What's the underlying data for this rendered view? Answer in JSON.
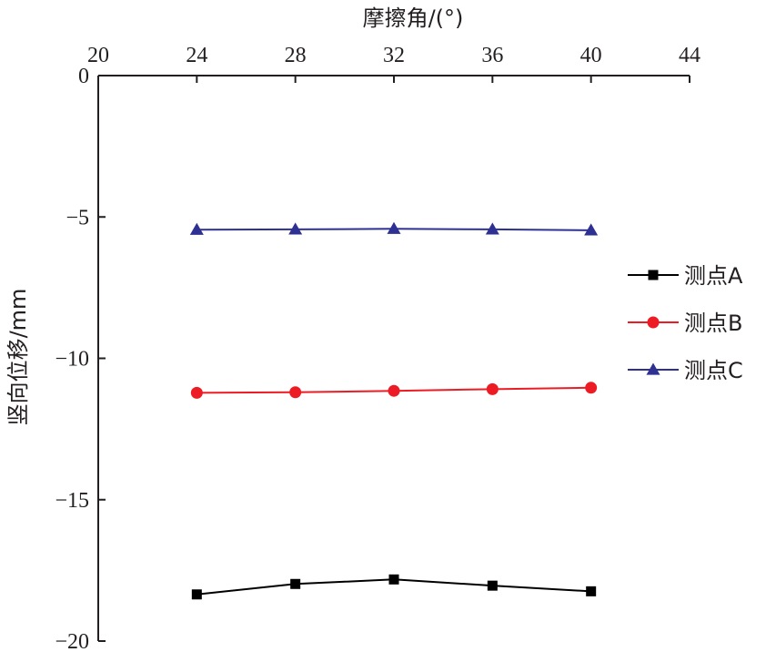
{
  "chart_data": {
    "type": "line",
    "xlabel": "摩擦角/(°)",
    "ylabel": "竖向位移/mm",
    "x_axis_position": "top",
    "xlim": [
      20,
      44
    ],
    "ylim": [
      -20,
      0
    ],
    "x_ticks": [
      20,
      24,
      28,
      32,
      36,
      40,
      44
    ],
    "x_tick_labels": [
      "20",
      "24",
      "28",
      "32",
      "36",
      "40",
      "44"
    ],
    "y_ticks": [
      0,
      -5,
      -10,
      -15,
      -20
    ],
    "y_tick_labels": [
      "0",
      "−5",
      "−10",
      "−15",
      "−20"
    ],
    "grid": false,
    "legend_position": "right",
    "x": [
      24,
      28,
      32,
      36,
      40
    ],
    "series": [
      {
        "name": "测点A",
        "values": [
          -18.35,
          -17.98,
          -17.82,
          -18.04,
          -18.24
        ],
        "color": "#000000",
        "marker": "square"
      },
      {
        "name": "测点B",
        "values": [
          -11.22,
          -11.2,
          -11.15,
          -11.09,
          -11.04
        ],
        "color": "#ed1c24",
        "marker": "circle"
      },
      {
        "name": "测点C",
        "values": [
          -5.45,
          -5.44,
          -5.42,
          -5.44,
          -5.47
        ],
        "color": "#2e3192",
        "marker": "triangle"
      }
    ]
  }
}
